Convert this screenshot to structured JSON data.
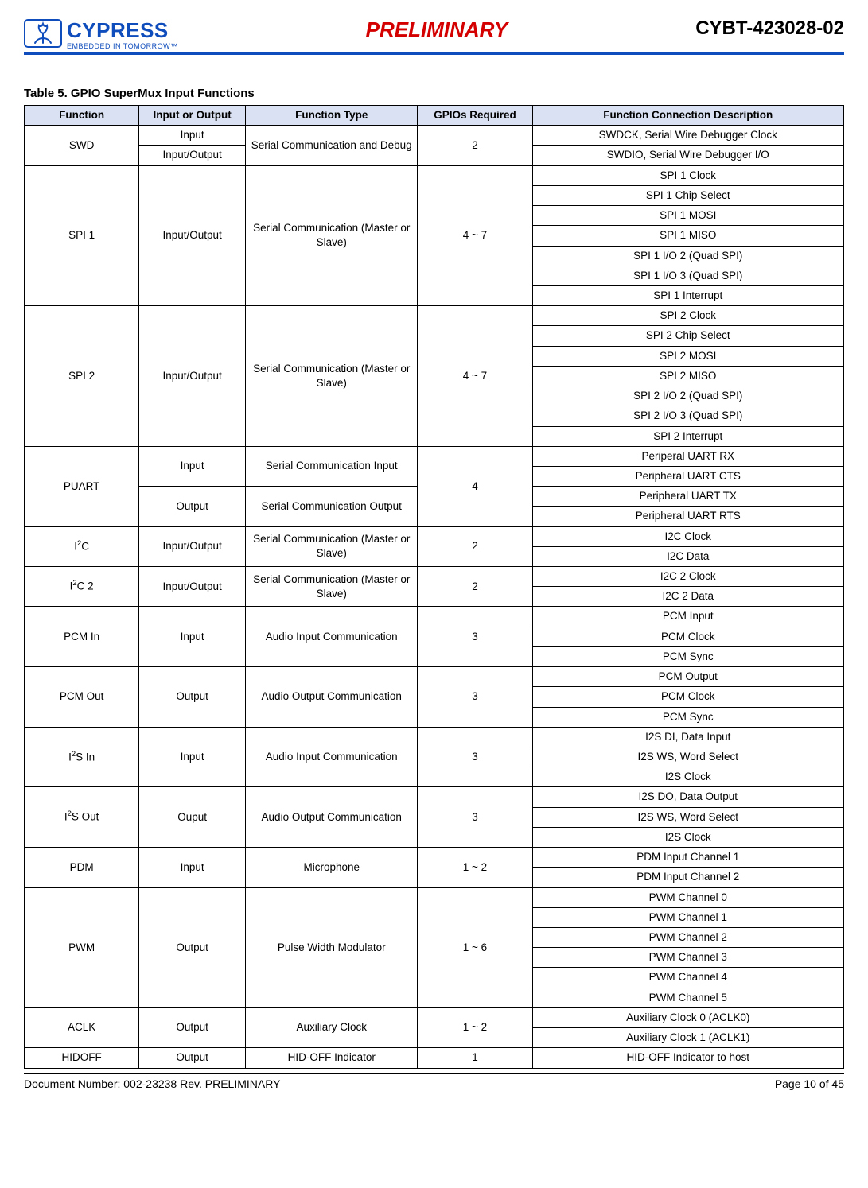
{
  "header": {
    "logo_main": "CYPRESS",
    "logo_tag": "EMBEDDED IN TOMORROW™",
    "preliminary": "PRELIMINARY",
    "part_number": "CYBT-423028-02"
  },
  "table_title": "Table 5.  GPIO SuperMux Input Functions",
  "columns": [
    "Function",
    "Input or Output",
    "Function Type",
    "GPIOs Required",
    "Function Connection Description"
  ],
  "colors": {
    "header_bg": "#d9e1f2",
    "rule": "#0f4dbc",
    "preliminary": "#d40000"
  },
  "rows": {
    "swd": {
      "function": "SWD",
      "io": [
        "Input",
        "Input/Output"
      ],
      "ftype": "Serial Communication and Debug",
      "gpios": "2",
      "desc": [
        "SWDCK, Serial Wire Debugger Clock",
        "SWDIO, Serial Wire Debugger I/O"
      ]
    },
    "spi1": {
      "function": "SPI 1",
      "io": "Input/Output",
      "ftype": "Serial Communication (Master or Slave)",
      "gpios": "4 ~ 7",
      "desc": [
        "SPI 1 Clock",
        "SPI 1 Chip Select",
        "SPI 1 MOSI",
        "SPI 1 MISO",
        "SPI 1 I/O 2 (Quad SPI)",
        "SPI 1 I/O 3 (Quad SPI)",
        "SPI 1 Interrupt"
      ]
    },
    "spi2": {
      "function": "SPI 2",
      "io": "Input/Output",
      "ftype": "Serial Communication (Master or Slave)",
      "gpios": "4 ~ 7",
      "desc": [
        "SPI 2 Clock",
        "SPI 2 Chip Select",
        "SPI 2 MOSI",
        "SPI 2 MISO",
        "SPI 2 I/O 2 (Quad SPI)",
        "SPI 2 I/O 3 (Quad SPI)",
        "SPI 2 Interrupt"
      ]
    },
    "puart": {
      "function": "PUART",
      "io": [
        "Input",
        "Output"
      ],
      "ftype": [
        "Serial Communication Input",
        "Serial Communication Output"
      ],
      "gpios": "4",
      "desc": [
        "Periperal UART RX",
        "Peripheral UART CTS",
        "Peripheral UART TX",
        "Peripheral UART RTS"
      ]
    },
    "i2c": {
      "function_html": "I<sup>2</sup>C",
      "io": "Input/Output",
      "ftype": "Serial Communication (Master or Slave)",
      "gpios": "2",
      "desc": [
        "I2C Clock",
        "I2C Data"
      ]
    },
    "i2c2": {
      "function_html": "I<sup>2</sup>C 2",
      "io": "Input/Output",
      "ftype": "Serial Communication (Master or Slave)",
      "gpios": "2",
      "desc": [
        "I2C 2 Clock",
        "I2C 2 Data"
      ]
    },
    "pcm_in": {
      "function": "PCM In",
      "io": "Input",
      "ftype": "Audio Input Communication",
      "gpios": "3",
      "desc": [
        "PCM Input",
        "PCM Clock",
        "PCM Sync"
      ]
    },
    "pcm_out": {
      "function": "PCM Out",
      "io": "Output",
      "ftype": "Audio Output Communication",
      "gpios": "3",
      "desc": [
        "PCM Output",
        "PCM Clock",
        "PCM Sync"
      ]
    },
    "i2s_in": {
      "function_html": "I<sup>2</sup>S In",
      "io": "Input",
      "ftype": "Audio Input Communication",
      "gpios": "3",
      "desc": [
        "I2S DI, Data Input",
        "I2S WS, Word Select",
        "I2S Clock"
      ]
    },
    "i2s_out": {
      "function_html": "I<sup>2</sup>S Out",
      "io": "Ouput",
      "ftype": "Audio Output Communication",
      "gpios": "3",
      "desc": [
        "I2S DO, Data Output",
        "I2S WS, Word Select",
        "I2S Clock"
      ]
    },
    "pdm": {
      "function": "PDM",
      "io": "Input",
      "ftype": "Microphone",
      "gpios": "1 ~ 2",
      "desc": [
        "PDM Input Channel 1",
        "PDM Input Channel 2"
      ]
    },
    "pwm": {
      "function": "PWM",
      "io": "Output",
      "ftype": "Pulse Width Modulator",
      "gpios": "1 ~ 6",
      "desc": [
        "PWM Channel 0",
        "PWM Channel 1",
        "PWM Channel 2",
        "PWM Channel 3",
        "PWM Channel 4",
        "PWM Channel 5"
      ]
    },
    "aclk": {
      "function": "ACLK",
      "io": "Output",
      "ftype": "Auxiliary Clock",
      "gpios": "1 ~ 2",
      "desc": [
        "Auxiliary Clock 0 (ACLK0)",
        "Auxiliary Clock 1 (ACLK1)"
      ]
    },
    "hidoff": {
      "function": "HIDOFF",
      "io": "Output",
      "ftype": "HID-OFF Indicator",
      "gpios": "1",
      "desc": [
        "HID-OFF Indicator to host"
      ]
    }
  },
  "footer": {
    "left": "Document Number: 002-23238 Rev. PRELIMINARY",
    "right": "Page 10 of 45"
  }
}
